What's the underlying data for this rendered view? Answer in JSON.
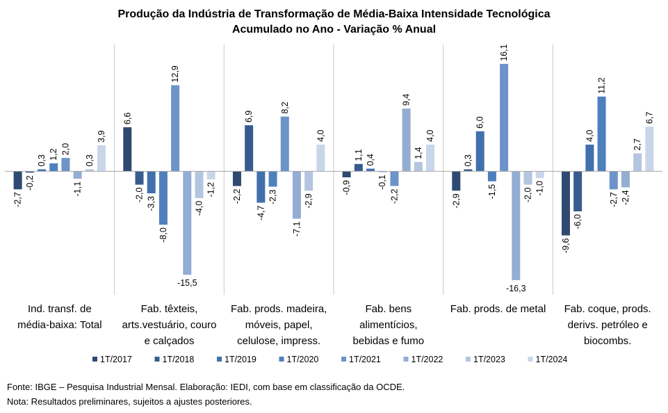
{
  "chart_data": {
    "type": "bar",
    "title": "Produção da Indústria de Transformação de Média-Baixa Intensidade Tecnológica",
    "subtitle": "Acumulado no Ano - Variação % Anual",
    "categories": [
      [
        "Ind. transf. de",
        "média-baixa: Total"
      ],
      [
        "Fab. têxteis,",
        "arts.vestuário, couro",
        "e calçados"
      ],
      [
        "Fab. prods. madeira,",
        "móveis, papel,",
        "celulose, impress."
      ],
      [
        "Fab. bens",
        "alimentícios,",
        "bebidas e fumo"
      ],
      [
        "Fab. prods. de metal"
      ],
      [
        "Fab. coque, prods.",
        "derivs. petróleo e",
        "biocombs."
      ]
    ],
    "series": [
      {
        "name": "1T/2017",
        "color": "#2e4a72",
        "values": [
          -2.7,
          6.6,
          -2.2,
          -0.9,
          -2.9,
          -9.6
        ]
      },
      {
        "name": "1T/2018",
        "color": "#375c8f",
        "values": [
          -0.2,
          -2.0,
          6.9,
          1.1,
          0.3,
          -6.0
        ]
      },
      {
        "name": "1T/2019",
        "color": "#4170ad",
        "values": [
          0.3,
          -3.3,
          -4.7,
          0.4,
          6.0,
          4.0
        ]
      },
      {
        "name": "1T/2020",
        "color": "#4f80bd",
        "values": [
          1.2,
          -8.0,
          -2.3,
          -0.1,
          -1.5,
          11.2
        ]
      },
      {
        "name": "1T/2021",
        "color": "#6d93c9",
        "values": [
          2.0,
          12.9,
          8.2,
          -2.2,
          16.1,
          -2.7
        ]
      },
      {
        "name": "1T/2022",
        "color": "#93add3",
        "values": [
          -1.1,
          -15.5,
          -7.1,
          9.4,
          -16.3,
          -2.4
        ]
      },
      {
        "name": "1T/2023",
        "color": "#b3c5e0",
        "values": [
          0.3,
          -4.0,
          -2.9,
          1.4,
          -2.0,
          2.7
        ]
      },
      {
        "name": "1T/2024",
        "color": "#c9d6ea",
        "values": [
          3.9,
          -1.2,
          4.0,
          4.0,
          -1.0,
          6.7
        ]
      }
    ],
    "ylim": [
      -18.5,
      19
    ],
    "grid": false,
    "legend_position": "bottom",
    "data_labels": true
  },
  "footer": {
    "source": "Fonte: IBGE – Pesquisa Industrial Mensal. Elaboração: IEDI, com base em classificação da OCDE.",
    "note": "Nota: Resultados preliminares, sujeitos a ajustes posteriores."
  }
}
